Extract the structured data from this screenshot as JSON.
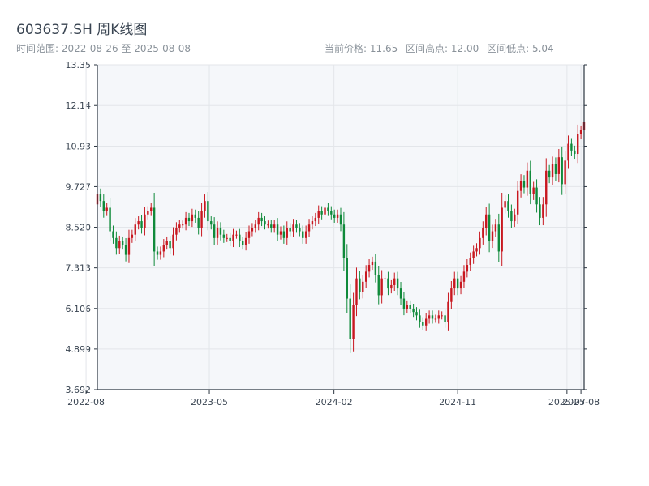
{
  "header": {
    "title": "603637.SH 周K线图",
    "range_label": "时间范围:",
    "range_start": "2022-08-26",
    "range_sep": "至",
    "range_end": "2025-08-08",
    "current_price": "当前价格: 11.65",
    "range_high": "区间高点: 12.00",
    "range_low": "区间低点: 5.04"
  },
  "colors": {
    "up": "#c8171f",
    "down": "#0f8a3a",
    "plot_bg": "#f5f7fa",
    "grid": "#e3e6ea",
    "axis": "#2b3540"
  },
  "chart_data": {
    "type": "candlestick",
    "title": "603637.SH 周K线图",
    "ylim": [
      3.692,
      13.35
    ],
    "y_ticks": [
      "13.35",
      "12.14",
      "10.93",
      "9.727",
      "8.520",
      "7.313",
      "6.106",
      "4.899",
      "3.692"
    ],
    "y_tick_values": [
      13.35,
      12.14,
      10.93,
      9.727,
      8.52,
      7.313,
      6.106,
      4.899,
      3.692
    ],
    "x_ticks": [
      "2022-08",
      "2023-05",
      "2024-02",
      "2024-11",
      "2025-07",
      "2025-08"
    ],
    "x_tick_dates": [
      "2022-08-01",
      "2023-05-01",
      "2024-02-01",
      "2024-11-01",
      "2025-07-01",
      "2025-08-01"
    ],
    "x_range": [
      "2022-08-26",
      "2025-08-08"
    ],
    "grid": true,
    "dates": [
      "2022-08-26",
      "2022-09-02",
      "2022-09-09",
      "2022-09-16",
      "2022-09-23",
      "2022-09-30",
      "2022-10-07",
      "2022-10-14",
      "2022-10-21",
      "2022-10-28",
      "2022-11-04",
      "2022-11-11",
      "2022-11-18",
      "2022-11-25",
      "2022-12-02",
      "2022-12-09",
      "2022-12-16",
      "2022-12-23",
      "2022-12-30",
      "2023-01-06",
      "2023-01-13",
      "2023-01-20",
      "2023-01-27",
      "2023-02-03",
      "2023-02-10",
      "2023-02-17",
      "2023-02-24",
      "2023-03-03",
      "2023-03-10",
      "2023-03-17",
      "2023-03-24",
      "2023-03-31",
      "2023-04-07",
      "2023-04-14",
      "2023-04-21",
      "2023-04-28",
      "2023-05-05",
      "2023-05-12",
      "2023-05-19",
      "2023-05-26",
      "2023-06-02",
      "2023-06-09",
      "2023-06-16",
      "2023-06-23",
      "2023-06-30",
      "2023-07-07",
      "2023-07-14",
      "2023-07-21",
      "2023-07-28",
      "2023-08-04",
      "2023-08-11",
      "2023-08-18",
      "2023-08-25",
      "2023-09-01",
      "2023-09-08",
      "2023-09-15",
      "2023-09-22",
      "2023-09-29",
      "2023-10-06",
      "2023-10-13",
      "2023-10-20",
      "2023-10-27",
      "2023-11-03",
      "2023-11-10",
      "2023-11-17",
      "2023-11-24",
      "2023-12-01",
      "2023-12-08",
      "2023-12-15",
      "2023-12-22",
      "2023-12-29",
      "2024-01-05",
      "2024-01-12",
      "2024-01-19",
      "2024-01-26",
      "2024-02-02",
      "2024-02-09",
      "2024-02-16",
      "2024-02-23",
      "2024-03-01",
      "2024-03-08",
      "2024-03-15",
      "2024-03-22",
      "2024-03-29",
      "2024-04-05",
      "2024-04-12",
      "2024-04-19",
      "2024-04-26",
      "2024-05-03",
      "2024-05-10",
      "2024-05-17",
      "2024-05-24",
      "2024-05-31",
      "2024-06-07",
      "2024-06-14",
      "2024-06-21",
      "2024-06-28",
      "2024-07-05",
      "2024-07-12",
      "2024-07-19",
      "2024-07-26",
      "2024-08-02",
      "2024-08-09",
      "2024-08-16",
      "2024-08-23",
      "2024-08-30",
      "2024-09-06",
      "2024-09-13",
      "2024-09-20",
      "2024-09-27",
      "2024-10-04",
      "2024-10-11",
      "2024-10-18",
      "2024-10-25",
      "2024-11-01",
      "2024-11-08",
      "2024-11-15",
      "2024-11-22",
      "2024-11-29",
      "2024-12-06",
      "2024-12-13",
      "2024-12-20",
      "2024-12-27",
      "2025-01-03",
      "2025-01-10",
      "2025-01-17",
      "2025-01-24",
      "2025-01-31",
      "2025-02-07",
      "2025-02-14",
      "2025-02-21",
      "2025-02-28",
      "2025-03-07",
      "2025-03-14",
      "2025-03-21",
      "2025-03-28",
      "2025-04-04",
      "2025-04-11",
      "2025-04-18",
      "2025-04-25",
      "2025-05-02",
      "2025-05-09",
      "2025-05-16",
      "2025-05-23",
      "2025-05-30",
      "2025-06-06",
      "2025-06-13",
      "2025-06-20",
      "2025-06-27",
      "2025-07-04",
      "2025-07-11",
      "2025-07-18",
      "2025-07-25",
      "2025-08-01",
      "2025-08-08"
    ],
    "close": [
      9.5,
      9.3,
      9.0,
      9.1,
      8.4,
      8.2,
      7.9,
      8.1,
      8.0,
      7.7,
      8.2,
      8.3,
      8.6,
      8.7,
      8.5,
      8.9,
      9.0,
      9.1,
      7.8,
      7.7,
      7.8,
      8.0,
      8.1,
      7.9,
      8.3,
      8.5,
      8.6,
      8.6,
      8.8,
      8.7,
      8.9,
      8.8,
      8.5,
      9.0,
      9.3,
      8.7,
      8.6,
      8.2,
      8.5,
      8.3,
      8.2,
      8.2,
      8.1,
      8.3,
      8.3,
      8.1,
      8.0,
      8.2,
      8.4,
      8.5,
      8.6,
      8.8,
      8.7,
      8.6,
      8.6,
      8.5,
      8.6,
      8.3,
      8.4,
      8.2,
      8.5,
      8.4,
      8.6,
      8.5,
      8.4,
      8.2,
      8.4,
      8.6,
      8.7,
      8.8,
      9.0,
      8.9,
      9.1,
      9.0,
      8.9,
      8.8,
      8.9,
      8.6,
      7.6,
      6.4,
      5.2,
      6.2,
      7.0,
      6.6,
      6.9,
      7.2,
      7.4,
      7.5,
      7.1,
      6.5,
      7.0,
      7.0,
      6.7,
      6.8,
      7.0,
      6.7,
      6.4,
      6.1,
      6.2,
      6.1,
      6.0,
      5.9,
      5.7,
      5.6,
      5.8,
      5.9,
      5.8,
      5.8,
      5.9,
      5.9,
      5.7,
      6.3,
      6.7,
      7.0,
      6.7,
      6.9,
      7.2,
      7.4,
      7.6,
      7.8,
      7.9,
      8.2,
      8.5,
      8.9,
      8.1,
      8.4,
      8.6,
      7.8,
      9.1,
      9.3,
      9.0,
      8.7,
      8.9,
      9.6,
      9.9,
      9.7,
      10.2,
      9.5,
      9.7,
      9.2,
      8.8,
      9.2,
      10.2,
      10.0,
      10.4,
      10.1,
      10.6,
      9.8,
      10.5,
      11.0,
      10.8,
      10.7,
      11.3,
      11.4,
      11.65
    ],
    "high_price": 12.0,
    "low_price": 5.04,
    "current_price": 11.65
  }
}
